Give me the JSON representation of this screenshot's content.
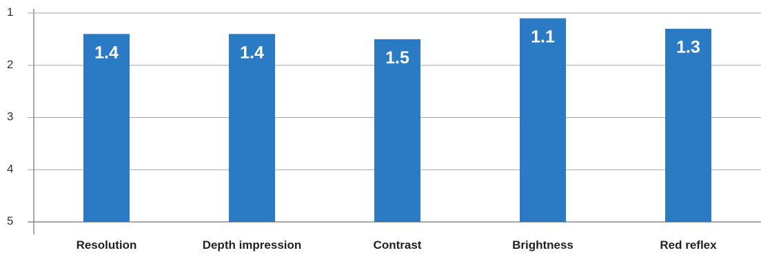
{
  "chart_data": {
    "type": "bar",
    "categories": [
      "Resolution",
      "Depth impression",
      "Contrast",
      "Brightness",
      "Red reflex"
    ],
    "values": [
      1.4,
      1.4,
      1.5,
      1.1,
      1.3
    ],
    "data_labels": [
      "1.4",
      "1.4",
      "1.5",
      "1.1",
      "1.3"
    ],
    "y_ticks": [
      "1",
      "2",
      "3",
      "4",
      "5"
    ],
    "ylim": [
      1,
      5
    ],
    "y_inverted": true,
    "grid": true,
    "title": "",
    "xlabel": "",
    "ylabel": "",
    "colors": {
      "bar": "#2a7bc4",
      "grid": "#a6a6a6",
      "label": "#ffffff"
    }
  }
}
